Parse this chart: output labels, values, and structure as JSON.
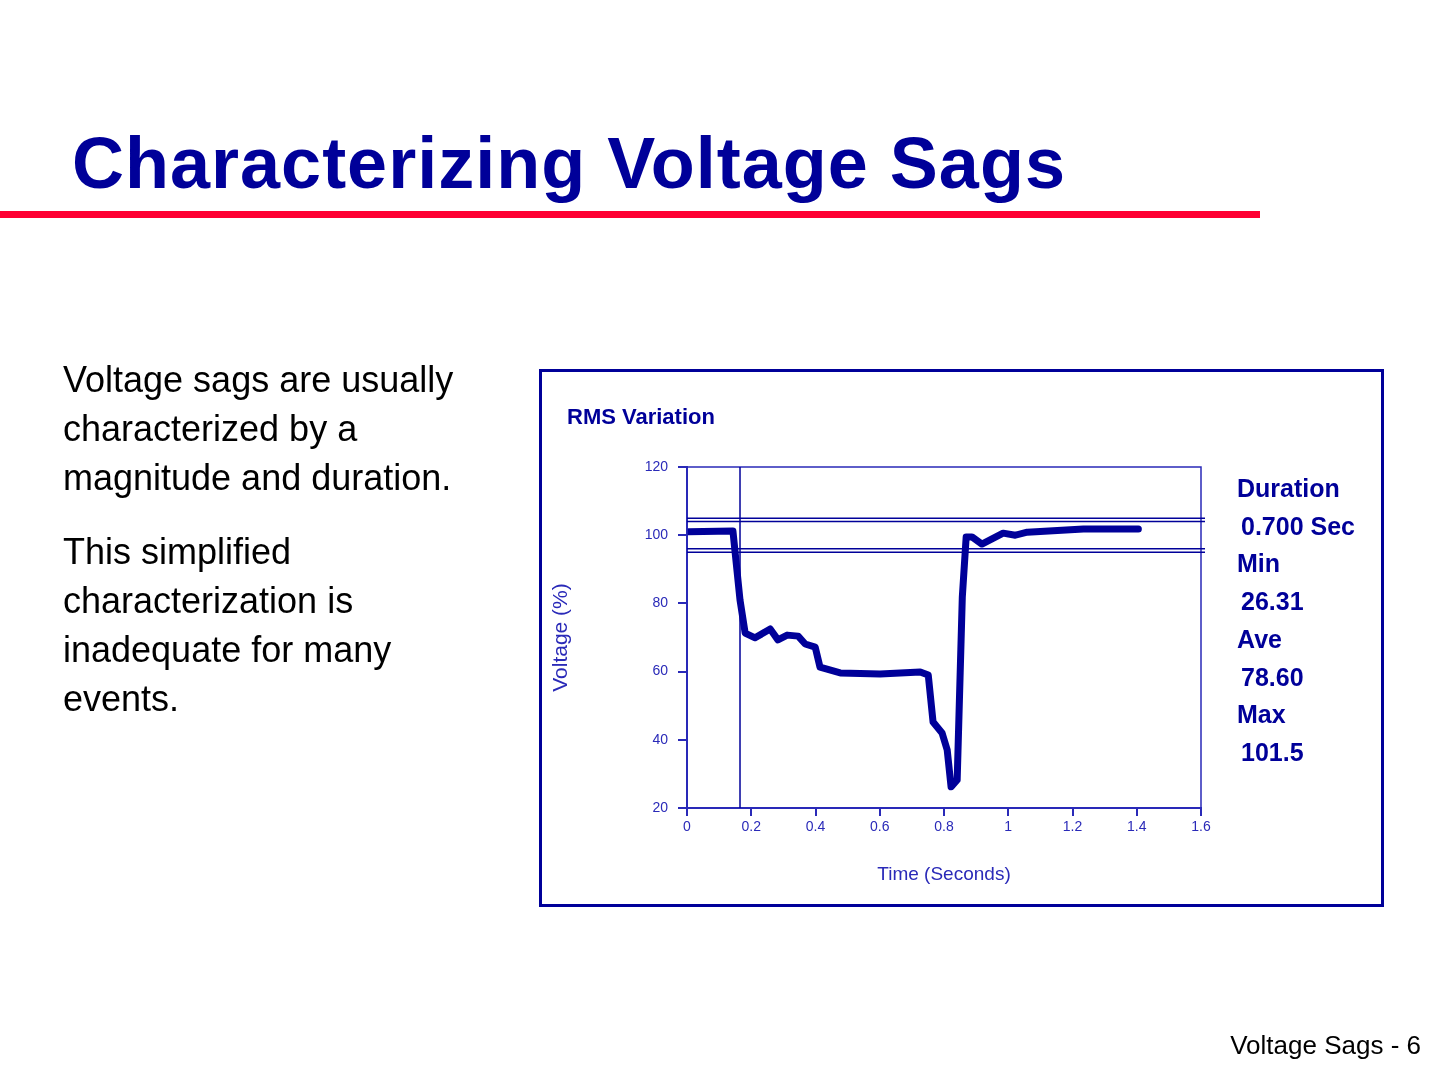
{
  "chart_data": {
    "type": "line",
    "title": "RMS Variation",
    "xlabel": "Time (Seconds)",
    "ylabel": "Voltage (%)",
    "x": [
      0.004,
      0.143,
      0.165,
      0.181,
      0.212,
      0.259,
      0.283,
      0.312,
      0.346,
      0.368,
      0.399,
      0.414,
      0.477,
      0.601,
      0.726,
      0.751,
      0.766,
      0.794,
      0.81,
      0.822,
      0.841,
      0.857,
      0.869,
      0.887,
      0.918,
      0.984,
      1.022,
      1.059,
      1.234,
      1.405
    ],
    "series": [
      {
        "color": "#000099",
        "values": [
          101,
          101.2,
          81,
          71.3,
          69.9,
          72.5,
          69.3,
          70.7,
          70.4,
          68.1,
          67.2,
          61.3,
          59.6,
          59.3,
          59.9,
          59,
          45.2,
          42,
          37,
          26.2,
          28.2,
          81.9,
          99.5,
          99.5,
          97.4,
          100.6,
          100,
          100.9,
          101.8,
          101.8
        ]
      }
    ],
    "xlim": [
      0,
      1.6
    ],
    "xticks": [
      0,
      0.2,
      0.4,
      0.6,
      0.8,
      1,
      1.2,
      1.4,
      1.6
    ],
    "ylim": [
      20,
      120
    ],
    "yticks": [
      20,
      40,
      60,
      80,
      100,
      120
    ],
    "grid": false,
    "legend": false,
    "marker": "none",
    "line_style": "solid",
    "ref_lines": [
      {
        "axis": "y",
        "value": 105,
        "color": "#000099"
      },
      {
        "axis": "y",
        "value": 104,
        "color": "#000099"
      },
      {
        "axis": "y",
        "value": 96,
        "color": "#000099"
      },
      {
        "axis": "y",
        "value": 95,
        "color": "#000099"
      },
      {
        "axis": "x",
        "value": 0.165,
        "color": "#000099"
      }
    ],
    "annotations": [
      "Characterizing Voltage Sags",
      "Voltage sags are usually characterized by a magnitude and duration.",
      "This simplified characterization is inadequate for many events.",
      "Duration",
      "0.700 Sec",
      "Min",
      "26.31",
      "Ave",
      "78.60",
      "Max",
      "101.5",
      "Voltage Sags - 6"
    ]
  }
}
